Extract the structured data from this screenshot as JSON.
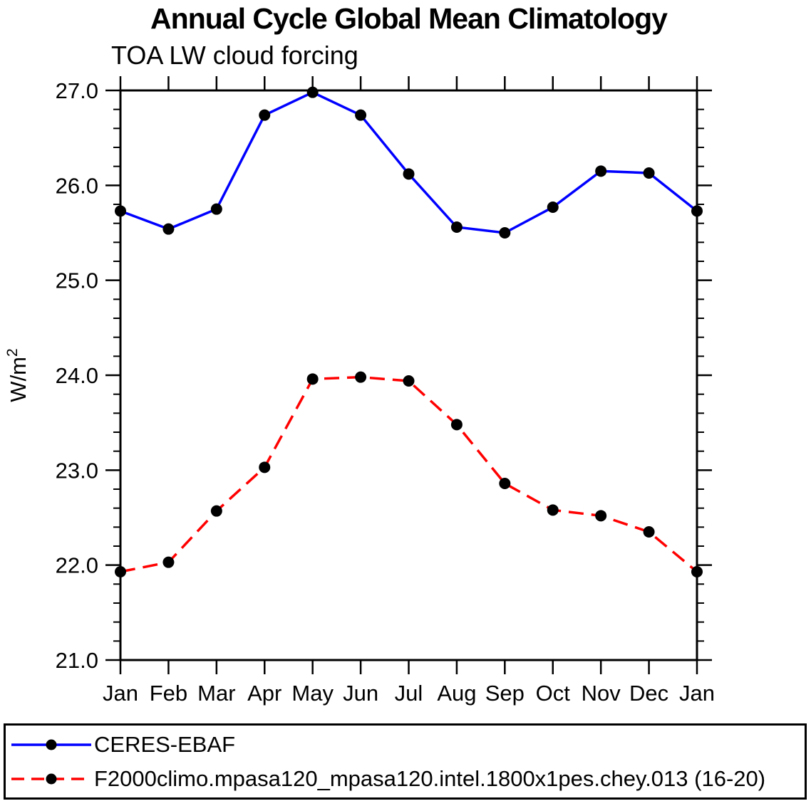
{
  "page": {
    "background_color": "#ffffff",
    "text_color": "#000000"
  },
  "header": {
    "title": "Annual Cycle Global Mean Climatology",
    "subtitle": "TOA LW cloud forcing"
  },
  "chart_data": {
    "type": "line",
    "title": "Annual Cycle Global Mean Climatology",
    "subtitle": "TOA LW cloud forcing",
    "xlabel": "",
    "ylabel": "W/m²",
    "ylabel_base": "W/m",
    "ylabel_sup": "2",
    "x_categories": [
      "Jan",
      "Feb",
      "Mar",
      "Apr",
      "May",
      "Jun",
      "Jul",
      "Aug",
      "Sep",
      "Oct",
      "Nov",
      "Dec",
      "Jan"
    ],
    "ylim": [
      21.0,
      27.0
    ],
    "ytick_major_interval": 1.0,
    "ytick_minor_interval": 0.2,
    "ytick_labels": [
      "21.0",
      "22.0",
      "23.0",
      "24.0",
      "25.0",
      "26.0",
      "27.0"
    ],
    "grid": false,
    "frame_color": "#000000",
    "marker": {
      "shape": "circle",
      "color": "#000000"
    },
    "legend_position": "bottom",
    "series": [
      {
        "name": "CERES-EBAF",
        "color": "#0000ff",
        "line_style": "solid",
        "marker": "filled-circle",
        "values": [
          25.73,
          25.54,
          25.75,
          26.74,
          26.98,
          26.74,
          26.12,
          25.56,
          25.5,
          25.77,
          26.15,
          26.13,
          25.73
        ]
      },
      {
        "name": "F2000climo.mpasa120_mpasa120.intel.1800x1pes.chey.013 (16-20)",
        "color": "#ff0000",
        "line_style": "dashed",
        "marker": "filled-circle",
        "values": [
          21.93,
          22.03,
          22.57,
          23.03,
          23.96,
          23.98,
          23.94,
          23.48,
          22.86,
          22.58,
          22.52,
          22.35,
          21.93
        ]
      }
    ]
  }
}
